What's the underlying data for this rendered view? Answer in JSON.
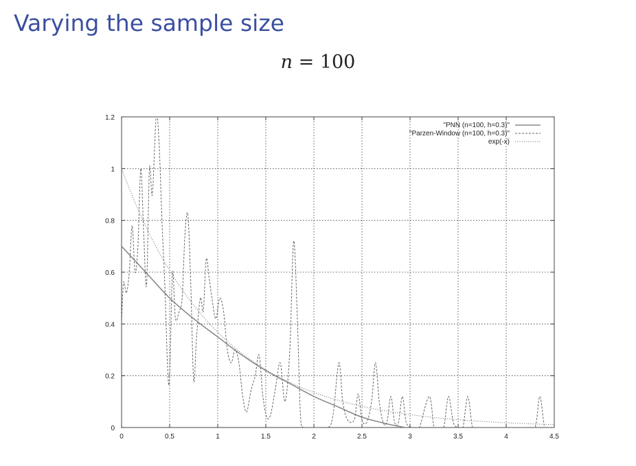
{
  "slide": {
    "title": "Varying the sample size",
    "subtitle_var": "n",
    "subtitle_rest": " = 100"
  },
  "chart_data": {
    "type": "line",
    "title": "",
    "xlabel": "",
    "ylabel": "",
    "xlim": [
      0,
      4.5
    ],
    "ylim": [
      0,
      1.2
    ],
    "grid": true,
    "legend_position": "top-right",
    "x_ticks": [
      "0",
      "0.5",
      "1",
      "1.5",
      "2",
      "2.5",
      "3",
      "3.5",
      "4",
      "4.5"
    ],
    "y_ticks": [
      "0",
      "0.2",
      "0.4",
      "0.6",
      "0.8",
      "1",
      "1.2"
    ],
    "series": [
      {
        "name": "\"PNN (n=100, h=0.3)\"",
        "style": "solid",
        "color": "#8a8a8a",
        "x": [
          0,
          0.25,
          0.5,
          0.75,
          1.0,
          1.25,
          1.5,
          1.75,
          2.0,
          2.25,
          2.5,
          2.75,
          2.95
        ],
        "y": [
          0.7,
          0.6,
          0.5,
          0.42,
          0.35,
          0.28,
          0.22,
          0.17,
          0.12,
          0.08,
          0.04,
          0.015,
          0.0
        ]
      },
      {
        "name": "\"Parzen-Window (n=100, h=0.3)\"",
        "style": "dashed",
        "color": "#666666",
        "x": [
          0.0,
          0.02,
          0.05,
          0.08,
          0.11,
          0.14,
          0.17,
          0.2,
          0.23,
          0.26,
          0.29,
          0.32,
          0.36,
          0.39,
          0.42,
          0.45,
          0.48,
          0.5,
          0.53,
          0.56,
          0.6,
          0.63,
          0.66,
          0.69,
          0.72,
          0.75,
          0.78,
          0.82,
          0.85,
          0.88,
          0.91,
          0.94,
          0.98,
          1.02,
          1.06,
          1.1,
          1.14,
          1.18,
          1.22,
          1.26,
          1.3,
          1.35,
          1.39,
          1.43,
          1.47,
          1.51,
          1.55,
          1.6,
          1.65,
          1.7,
          1.75,
          1.79,
          1.83,
          1.86,
          1.89,
          1.93,
          1.97,
          2.05,
          2.15,
          2.2,
          2.26,
          2.3,
          2.35,
          2.42,
          2.46,
          2.5,
          2.55,
          2.6,
          2.64,
          2.68,
          2.72,
          2.76,
          2.8,
          2.84,
          2.88,
          2.92,
          2.96,
          3.02,
          3.08,
          3.1,
          3.2,
          3.25,
          3.3,
          3.35,
          3.4,
          3.45,
          3.5,
          3.55,
          3.6,
          3.65,
          3.7,
          3.75,
          3.8,
          3.85,
          3.9,
          3.95,
          4.0,
          4.05,
          4.1,
          4.2,
          4.3,
          4.35,
          4.4,
          4.45,
          4.5
        ],
        "y": [
          0.4,
          0.56,
          0.52,
          0.6,
          0.78,
          0.6,
          0.7,
          1.0,
          0.75,
          0.55,
          1.0,
          0.9,
          1.2,
          1.1,
          0.8,
          0.55,
          0.22,
          0.2,
          0.6,
          0.42,
          0.45,
          0.5,
          0.75,
          0.82,
          0.55,
          0.18,
          0.35,
          0.5,
          0.45,
          0.65,
          0.58,
          0.5,
          0.42,
          0.5,
          0.45,
          0.3,
          0.25,
          0.3,
          0.25,
          0.12,
          0.06,
          0.15,
          0.2,
          0.28,
          0.12,
          0.04,
          0.05,
          0.15,
          0.25,
          0.1,
          0.3,
          0.72,
          0.4,
          0.05,
          0.0,
          0.0,
          0.0,
          0.0,
          0.0,
          0.05,
          0.25,
          0.1,
          0.03,
          0.03,
          0.13,
          0.03,
          0.02,
          0.1,
          0.25,
          0.1,
          0.02,
          0.02,
          0.12,
          0.02,
          0.02,
          0.12,
          0.02,
          0.0,
          0.0,
          0.0,
          0.12,
          0.0,
          0.0,
          0.0,
          0.12,
          0.02,
          0.0,
          0.0,
          0.12,
          0.0,
          0.0,
          0.0,
          0.0,
          0.0,
          0.0,
          0.0,
          0.0,
          0.0,
          0.0,
          0.0,
          0.0,
          0.12,
          0.0,
          0.0,
          0.0
        ]
      },
      {
        "name": "exp(-x)",
        "style": "dotted",
        "color": "#777777",
        "function": "exp(-x)"
      }
    ]
  }
}
